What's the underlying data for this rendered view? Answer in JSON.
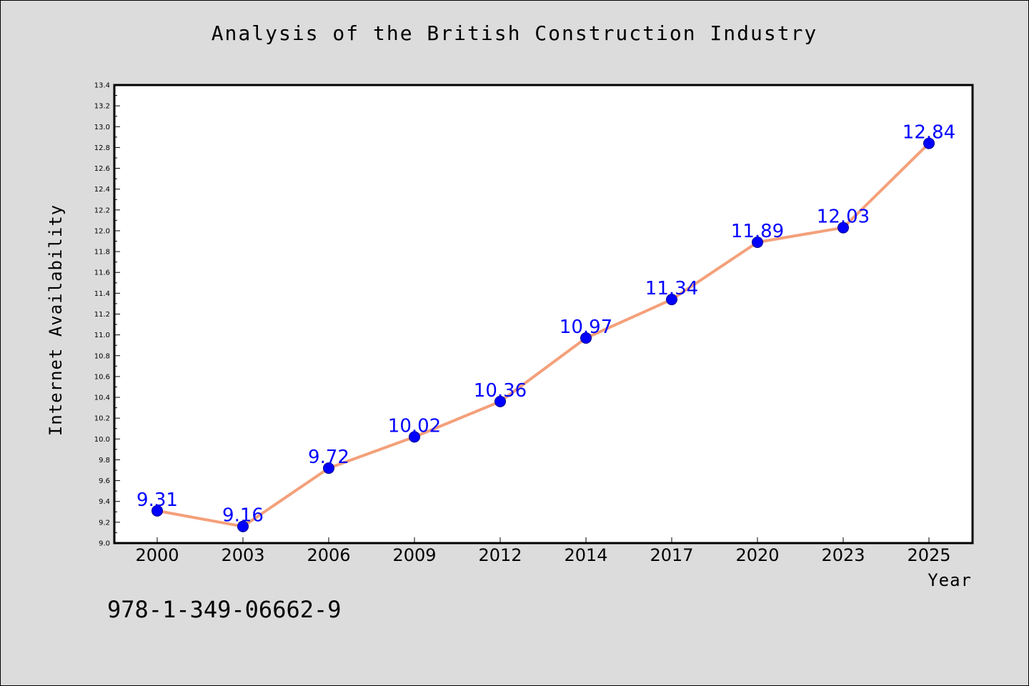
{
  "colors": {
    "background": "#dcdcdc",
    "plot_bg": "#ffffff",
    "line": "#f4a07a",
    "marker": "#0000ff",
    "data_label": "#0000ff"
  },
  "footer": {
    "isbn": "978-1-349-06662-9"
  },
  "chart_data": {
    "type": "line",
    "title": "Analysis of the British Construction Industry",
    "xlabel": "Year",
    "ylabel": "Internet Availability",
    "categories": [
      "2000",
      "2003",
      "2006",
      "2009",
      "2012",
      "2014",
      "2017",
      "2020",
      "2023",
      "2025"
    ],
    "series": [
      {
        "values": [
          9.31,
          9.16,
          9.72,
          10.02,
          10.36,
          10.97,
          11.34,
          11.89,
          12.03,
          12.84
        ],
        "labels": [
          "9.31",
          "9.16",
          "9.72",
          "10.02",
          "10.36",
          "10.97",
          "11.34",
          "11.89",
          "12.03",
          "12.84"
        ]
      }
    ],
    "ylim": [
      9.0,
      13.4
    ],
    "yticks": [
      "9.0",
      "9.2",
      "9.4",
      "9.6",
      "9.8",
      "10.0",
      "10.2",
      "10.4",
      "10.6",
      "10.8",
      "11.0",
      "11.2",
      "11.4",
      "11.6",
      "11.8",
      "12.0",
      "12.2",
      "12.4",
      "12.6",
      "12.8",
      "13.0",
      "13.2",
      "13.4"
    ],
    "grid": false,
    "legend": "none"
  }
}
